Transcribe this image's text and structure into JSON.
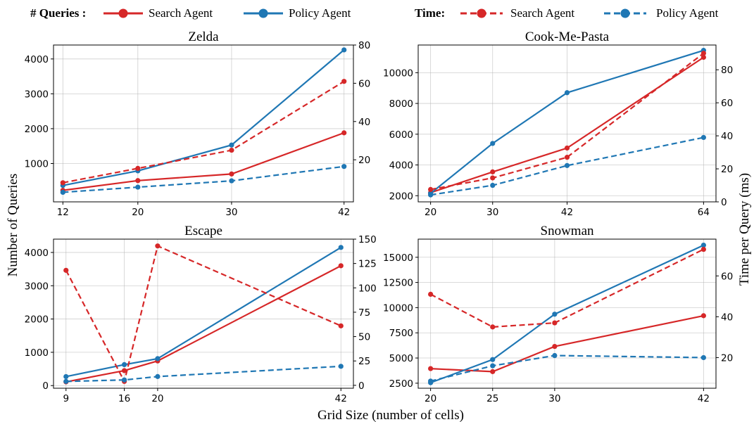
{
  "legend": {
    "queries_title": "# Queries :",
    "time_title": "Time:",
    "search_label": "Search Agent",
    "policy_label": "Policy Agent"
  },
  "shared": {
    "xlabel": "Grid Size (number of cells)",
    "ylabel_left": "Number of Queries",
    "ylabel_right": "Time per Query (ms)"
  },
  "colors": {
    "search": "#d62728",
    "policy": "#1f77b4"
  },
  "chart_data": [
    {
      "type": "line",
      "title": "Zelda",
      "x": [
        12,
        20,
        30,
        42
      ],
      "x_ticks": [
        12,
        20,
        30,
        42
      ],
      "xlim": [
        11,
        43
      ],
      "ylim_left": [
        -100,
        4400
      ],
      "yticks_left": [
        1000,
        2000,
        3000,
        4000
      ],
      "ylim_right": [
        -2,
        80
      ],
      "yticks_right": [
        20,
        40,
        60,
        80
      ],
      "grid": true,
      "series": [
        {
          "name": "Search Agent",
          "metric": "# Queries",
          "axis": "left",
          "values": [
            230,
            510,
            700,
            1880
          ]
        },
        {
          "name": "Policy Agent",
          "metric": "# Queries",
          "axis": "left",
          "values": [
            370,
            790,
            1530,
            4260
          ]
        },
        {
          "name": "Search Agent",
          "metric": "Time",
          "axis": "right",
          "values": [
            8,
            15.5,
            25,
            61
          ]
        },
        {
          "name": "Policy Agent",
          "metric": "Time",
          "axis": "right",
          "values": [
            3,
            5.7,
            9,
            16.5
          ]
        }
      ]
    },
    {
      "type": "line",
      "title": "Cook-Me-Pasta",
      "x": [
        20,
        30,
        42,
        64
      ],
      "x_ticks": [
        20,
        30,
        42,
        64
      ],
      "xlim": [
        18,
        66
      ],
      "ylim_left": [
        1600,
        11800
      ],
      "yticks_left": [
        2000,
        4000,
        6000,
        8000,
        10000
      ],
      "ylim_right": [
        0,
        95
      ],
      "yticks_right": [
        0,
        20,
        40,
        60,
        80
      ],
      "grid": true,
      "series": [
        {
          "name": "Search Agent",
          "metric": "# Queries",
          "axis": "left",
          "values": [
            2200,
            3550,
            5100,
            11000
          ]
        },
        {
          "name": "Policy Agent",
          "metric": "# Queries",
          "axis": "left",
          "values": [
            2150,
            5400,
            8700,
            11450
          ]
        },
        {
          "name": "Search Agent",
          "metric": "Time",
          "axis": "right",
          "values": [
            7.5,
            14.5,
            27,
            90
          ]
        },
        {
          "name": "Policy Agent",
          "metric": "Time",
          "axis": "right",
          "values": [
            4.2,
            10,
            22,
            39
          ]
        }
      ]
    },
    {
      "type": "line",
      "title": "Escape",
      "x": [
        9,
        16,
        20,
        42
      ],
      "x_ticks": [
        9,
        16,
        20,
        42
      ],
      "xlim": [
        7.5,
        43.5
      ],
      "ylim_left": [
        -80,
        4400
      ],
      "yticks_left": [
        0,
        1000,
        2000,
        3000,
        4000
      ],
      "ylim_right": [
        -3,
        150
      ],
      "yticks_right": [
        0,
        25,
        50,
        75,
        100,
        125,
        150
      ],
      "grid": true,
      "series": [
        {
          "name": "Search Agent",
          "metric": "# Queries",
          "axis": "left",
          "values": [
            110,
            450,
            740,
            3600
          ]
        },
        {
          "name": "Policy Agent",
          "metric": "# Queries",
          "axis": "left",
          "values": [
            270,
            630,
            810,
            4150
          ]
        },
        {
          "name": "Search Agent",
          "metric": "Time",
          "axis": "right",
          "values": [
            118,
            4,
            143,
            61
          ]
        },
        {
          "name": "Policy Agent",
          "metric": "Time",
          "axis": "right",
          "values": [
            4,
            5.5,
            9,
            19.5
          ]
        }
      ]
    },
    {
      "type": "line",
      "title": "Snowman",
      "x": [
        20,
        25,
        30,
        42
      ],
      "x_ticks": [
        20,
        25,
        30,
        42
      ],
      "xlim": [
        19,
        43
      ],
      "ylim_left": [
        2000,
        16800
      ],
      "yticks_left": [
        2500,
        5000,
        7500,
        10000,
        12500,
        15000
      ],
      "ylim_right": [
        5,
        78
      ],
      "yticks_right": [
        20,
        40,
        60
      ],
      "grid": true,
      "series": [
        {
          "name": "Search Agent",
          "metric": "# Queries",
          "axis": "left",
          "values": [
            3950,
            3650,
            6150,
            9200
          ]
        },
        {
          "name": "Policy Agent",
          "metric": "# Queries",
          "axis": "left",
          "values": [
            2550,
            4850,
            9350,
            16200
          ]
        },
        {
          "name": "Search Agent",
          "metric": "Time",
          "axis": "right",
          "values": [
            51,
            35,
            37,
            73
          ]
        },
        {
          "name": "Policy Agent",
          "metric": "Time",
          "axis": "right",
          "values": [
            8.5,
            16,
            21,
            20
          ]
        }
      ]
    }
  ]
}
